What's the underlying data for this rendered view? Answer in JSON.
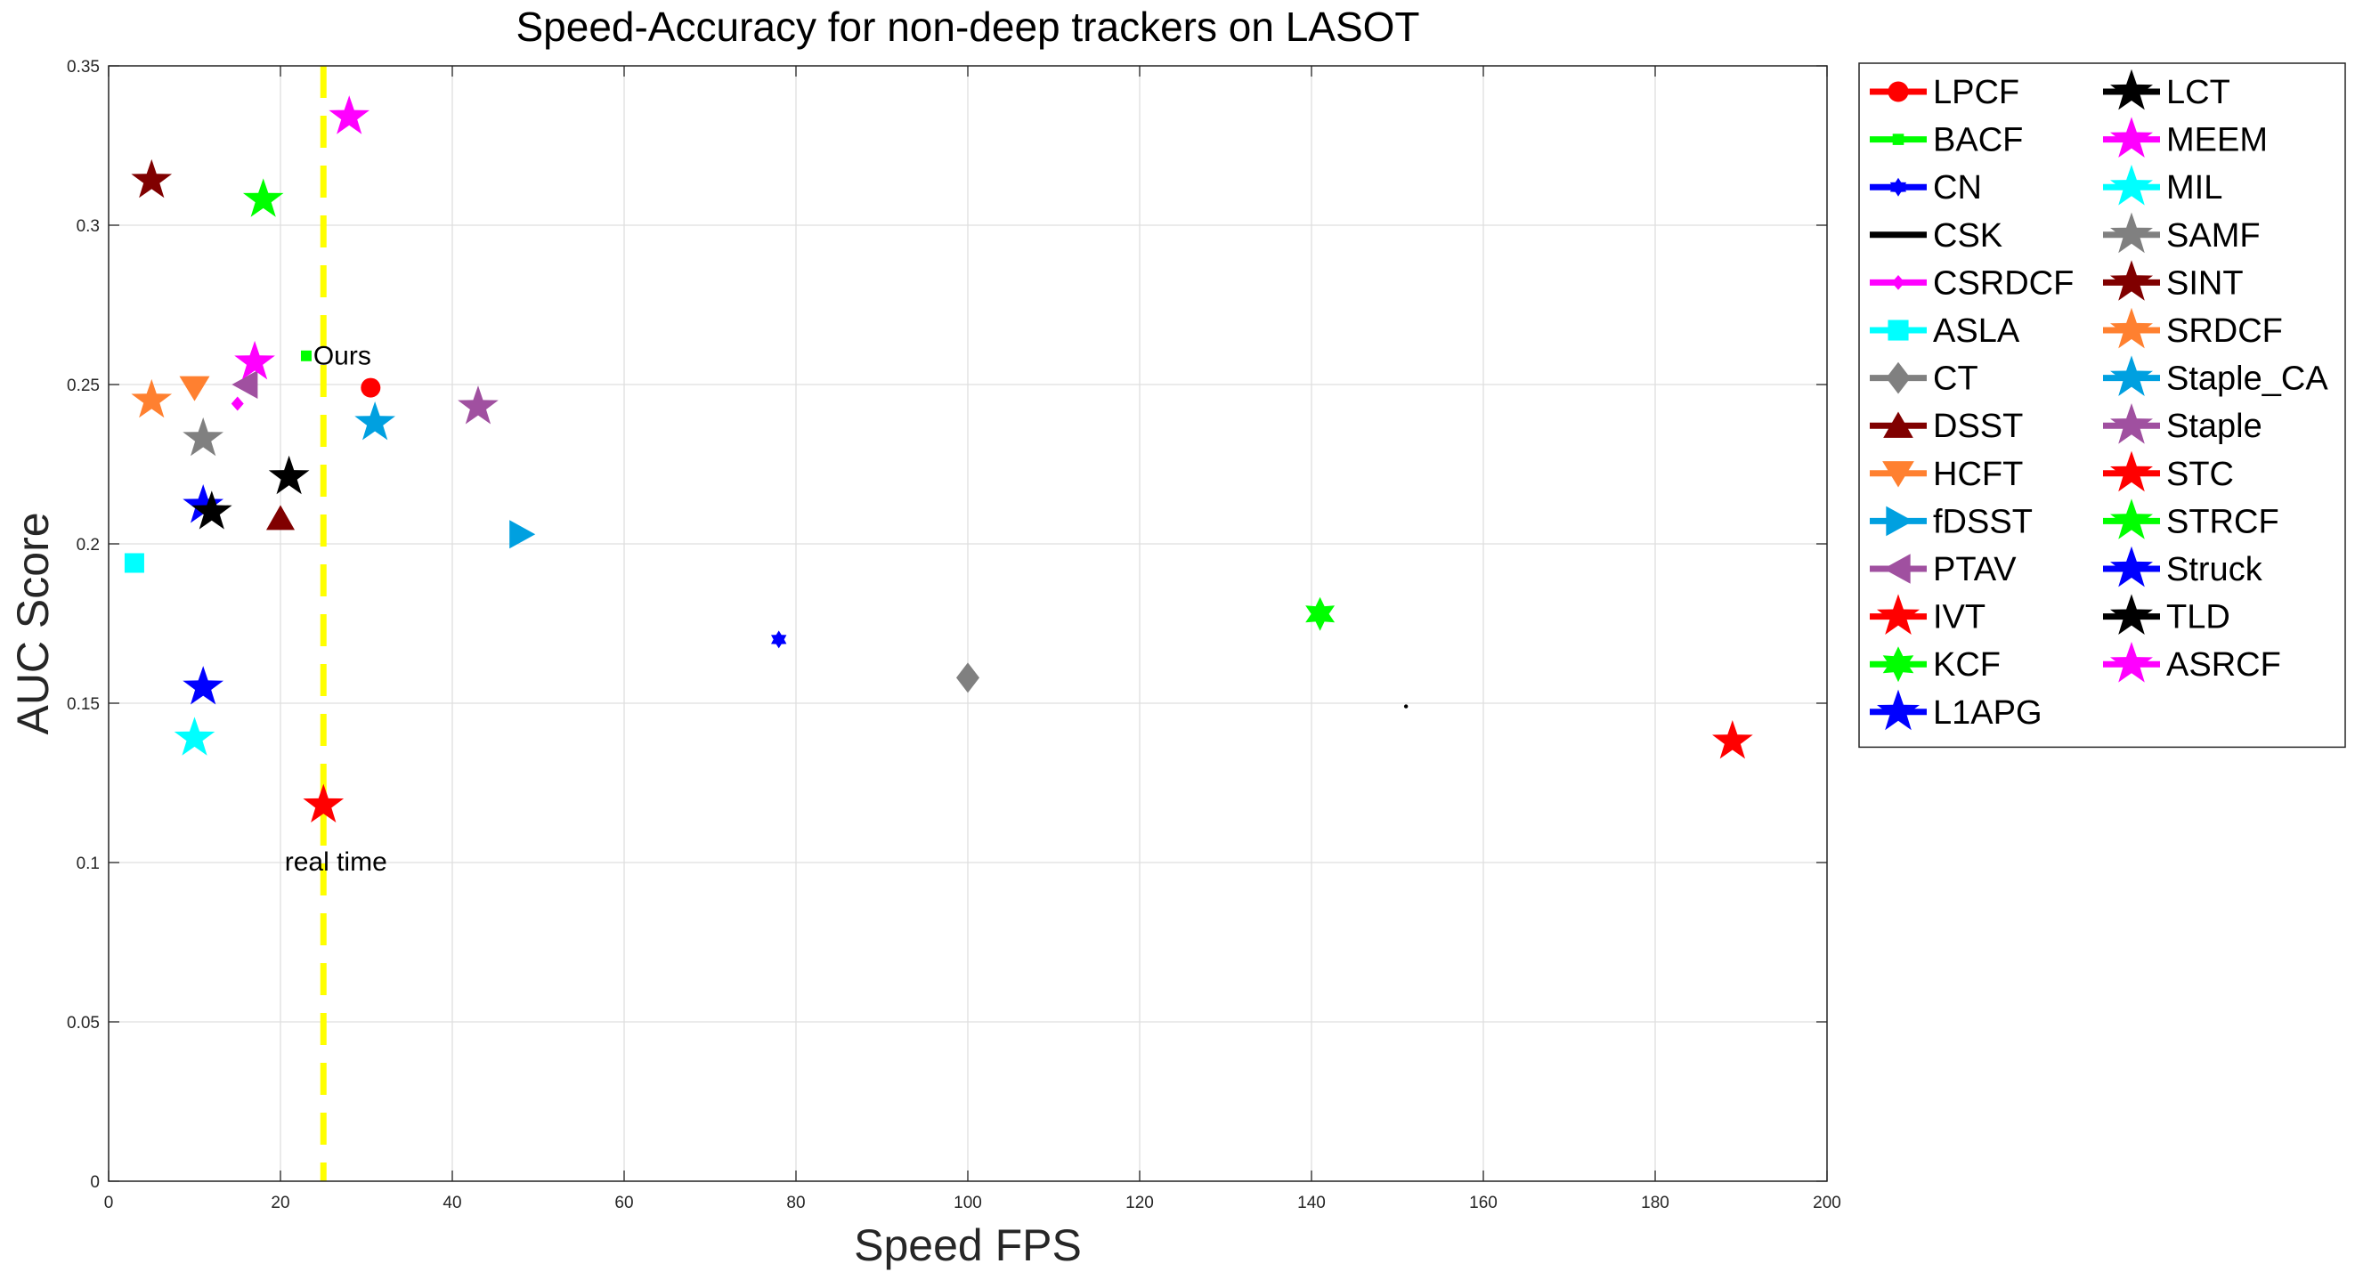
{
  "chart_data": {
    "type": "scatter",
    "title": "Speed-Accuracy for non-deep trackers on LASOT",
    "xlabel": "Speed FPS",
    "ylabel": "AUC Score",
    "xlim": [
      0,
      200
    ],
    "ylim": [
      0,
      0.35
    ],
    "xticks": [
      "0",
      "20",
      "40",
      "60",
      "80",
      "100",
      "120",
      "140",
      "160",
      "180",
      "200"
    ],
    "yticks": [
      "0",
      "0.05",
      "0.1",
      "0.15",
      "0.2",
      "0.25",
      "0.3",
      "0.35"
    ],
    "grid": true,
    "legend_position": "outside-right",
    "legend_columns": 2,
    "reference_line": {
      "x": 25,
      "label": "real time",
      "color": "#ffff00",
      "style": "dashed"
    },
    "annotations": [
      {
        "text": "Ours",
        "x": 30.5,
        "y": 0.249
      }
    ],
    "series": [
      {
        "name": "LPCF",
        "x": 30.5,
        "y": 0.249,
        "marker": "circle",
        "color": "#ff0000"
      },
      {
        "name": "BACF",
        "x": 23,
        "y": 0.259,
        "marker": "square-small",
        "color": "#00ff00"
      },
      {
        "name": "CN",
        "x": 78,
        "y": 0.17,
        "marker": "hexagram-small",
        "color": "#0000ff"
      },
      {
        "name": "CSK",
        "x": 151,
        "y": 0.149,
        "marker": "dot",
        "color": "#000000"
      },
      {
        "name": "CSRDCF",
        "x": 15,
        "y": 0.244,
        "marker": "diamond-small",
        "color": "#ff00ff"
      },
      {
        "name": "ASLA",
        "x": 3,
        "y": 0.194,
        "marker": "square",
        "color": "#00ffff"
      },
      {
        "name": "CT",
        "x": 100,
        "y": 0.158,
        "marker": "diamond",
        "color": "#808080"
      },
      {
        "name": "DSST",
        "x": 20,
        "y": 0.208,
        "marker": "triangle-up",
        "color": "#800000"
      },
      {
        "name": "HCFT",
        "x": 10,
        "y": 0.249,
        "marker": "triangle-down",
        "color": "#ff8030"
      },
      {
        "name": "fDSST",
        "x": 48,
        "y": 0.203,
        "marker": "triangle-right",
        "color": "#00a0e0"
      },
      {
        "name": "PTAV",
        "x": 16,
        "y": 0.25,
        "marker": "triangle-left",
        "color": "#a050a0"
      },
      {
        "name": "IVT",
        "x": 25,
        "y": 0.118,
        "marker": "pentagram",
        "color": "#ff0000"
      },
      {
        "name": "KCF",
        "x": 141,
        "y": 0.178,
        "marker": "hexagram",
        "color": "#00ff00"
      },
      {
        "name": "L1APG",
        "x": 11,
        "y": 0.155,
        "marker": "pentagram",
        "color": "#0000ff"
      },
      {
        "name": "LCT",
        "x": 21,
        "y": 0.221,
        "marker": "pentagram",
        "color": "#000000"
      },
      {
        "name": "MEEM",
        "x": 17,
        "y": 0.257,
        "marker": "pentagram",
        "color": "#ff00ff"
      },
      {
        "name": "MIL",
        "x": 10,
        "y": 0.139,
        "marker": "pentagram",
        "color": "#00ffff"
      },
      {
        "name": "SAMF",
        "x": 11,
        "y": 0.233,
        "marker": "pentagram",
        "color": "#808080"
      },
      {
        "name": "SINT",
        "x": 5,
        "y": 0.314,
        "marker": "pentagram",
        "color": "#800000"
      },
      {
        "name": "SRDCF",
        "x": 5,
        "y": 0.245,
        "marker": "pentagram",
        "color": "#ff8030"
      },
      {
        "name": "Staple_CA",
        "x": 31,
        "y": 0.238,
        "marker": "pentagram",
        "color": "#00a0e0"
      },
      {
        "name": "Staple",
        "x": 43,
        "y": 0.243,
        "marker": "pentagram",
        "color": "#a050a0"
      },
      {
        "name": "STC",
        "x": 189,
        "y": 0.138,
        "marker": "pentagram",
        "color": "#ff0000"
      },
      {
        "name": "STRCF",
        "x": 18,
        "y": 0.308,
        "marker": "pentagram",
        "color": "#00ff00"
      },
      {
        "name": "Struck",
        "x": 11,
        "y": 0.212,
        "marker": "pentagram",
        "color": "#0000ff"
      },
      {
        "name": "TLD",
        "x": 12,
        "y": 0.21,
        "marker": "pentagram",
        "color": "#000000"
      },
      {
        "name": "ASRCF",
        "x": 28,
        "y": 0.334,
        "marker": "pentagram",
        "color": "#ff00ff"
      }
    ]
  }
}
